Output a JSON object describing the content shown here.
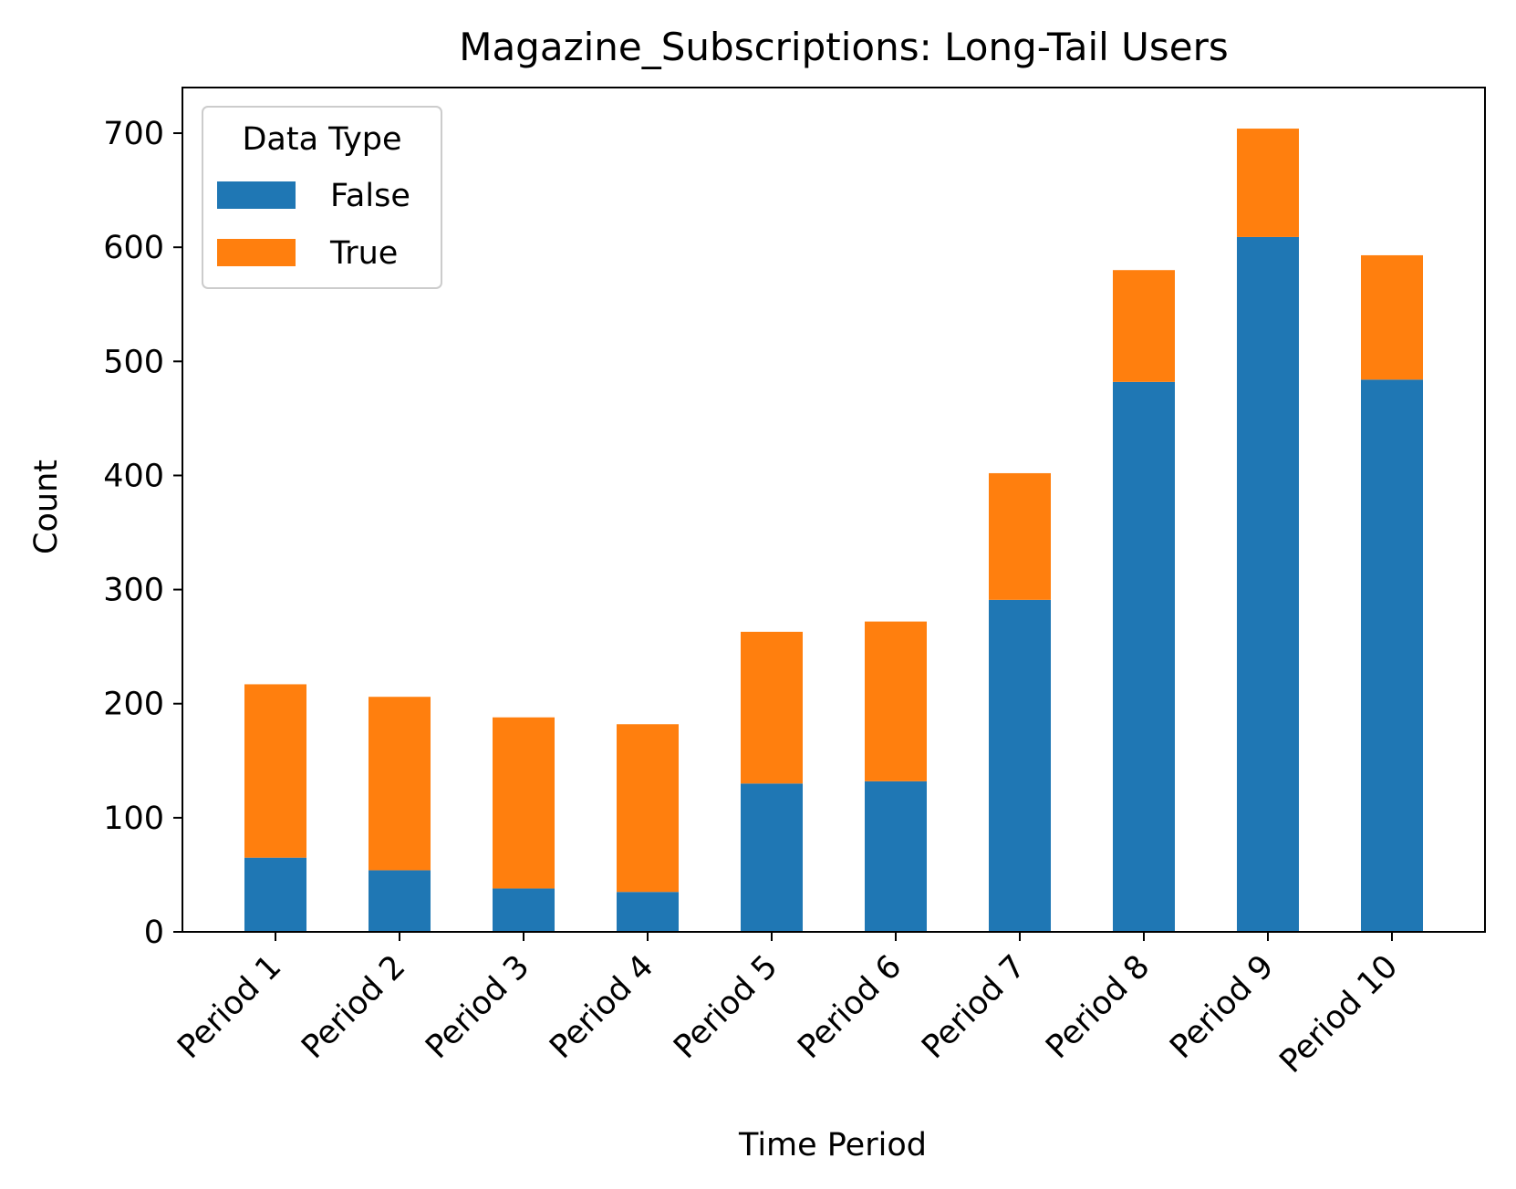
{
  "chart_data": {
    "type": "bar",
    "stacked": true,
    "title": "Magazine_Subscriptions: Long-Tail Users",
    "xlabel": "Time Period",
    "ylabel": "Count",
    "ylim": [
      0,
      740
    ],
    "yticks": [
      0,
      100,
      200,
      300,
      400,
      500,
      600,
      700
    ],
    "categories": [
      "Period 1",
      "Period 2",
      "Period 3",
      "Period 4",
      "Period 5",
      "Period 6",
      "Period 7",
      "Period 8",
      "Period 9",
      "Period 10"
    ],
    "legend": {
      "title": "Data Type",
      "placement": "top-left"
    },
    "series": [
      {
        "name": "False",
        "color": "#1f77b4",
        "values": [
          65,
          54,
          38,
          35,
          130,
          132,
          291,
          482,
          609,
          484
        ]
      },
      {
        "name": "True",
        "color": "#ff7f0e",
        "values": [
          152,
          152,
          150,
          147,
          133,
          140,
          111,
          98,
          95,
          109
        ]
      }
    ],
    "grid": false
  }
}
